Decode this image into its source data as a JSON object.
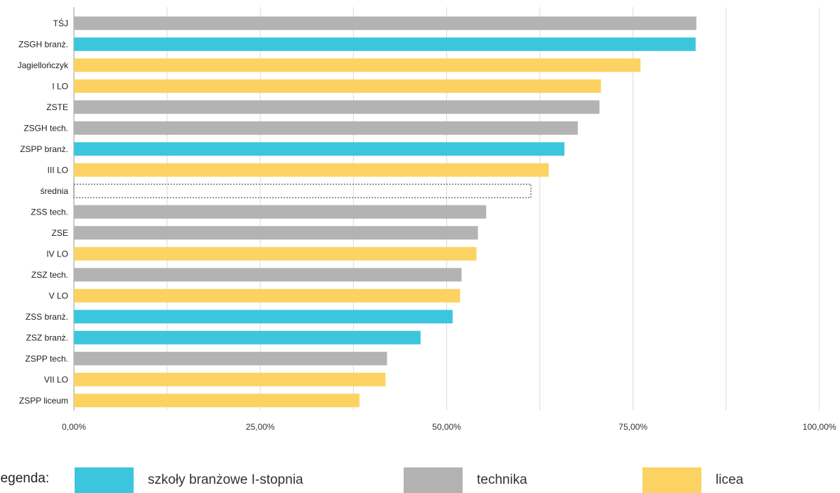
{
  "chart_data": {
    "type": "bar",
    "orientation": "horizontal",
    "title": "",
    "xlabel": "",
    "ylabel": "",
    "xlim": [
      0,
      100
    ],
    "grid": true,
    "x_ticks": [
      "0,00%",
      "25,00%",
      "50,00%",
      "75,00%",
      "100,00%"
    ],
    "categories": [
      "TŚJ",
      "ZSGH branż.",
      "Jagiellończyk",
      "I LO",
      "ZSTE",
      "ZSGH tech.",
      "ZSPP branż.",
      "III LO",
      "średnia",
      "ZSS tech.",
      "ZSE",
      "IV LO",
      "ZSZ tech.",
      "V LO",
      "ZSS branż.",
      "ZSZ branż.",
      "ZSPP tech.",
      "VII LO",
      "ZSPP liceum"
    ],
    "values": [
      83.5,
      83.4,
      76.0,
      70.7,
      70.5,
      67.6,
      65.8,
      63.7,
      61.3,
      55.3,
      54.2,
      54.0,
      52.0,
      51.8,
      50.8,
      46.5,
      42.0,
      41.8,
      38.3
    ],
    "groups": [
      "technika",
      "branzowe",
      "licea",
      "licea",
      "technika",
      "technika",
      "branzowe",
      "licea",
      "average",
      "technika",
      "technika",
      "licea",
      "technika",
      "licea",
      "branzowe",
      "branzowe",
      "technika",
      "licea",
      "licea"
    ],
    "colors": {
      "branzowe": "#3cc6dd",
      "technika": "#b3b3b3",
      "licea": "#fcd262",
      "average": "none",
      "grid": "#dcdcdc"
    }
  },
  "legend": {
    "title": "Legenda:",
    "items": [
      {
        "key": "branzowe",
        "label": "szkoły branżowe I-stopnia"
      },
      {
        "key": "technika",
        "label": "technika"
      },
      {
        "key": "licea",
        "label": "licea"
      }
    ]
  }
}
